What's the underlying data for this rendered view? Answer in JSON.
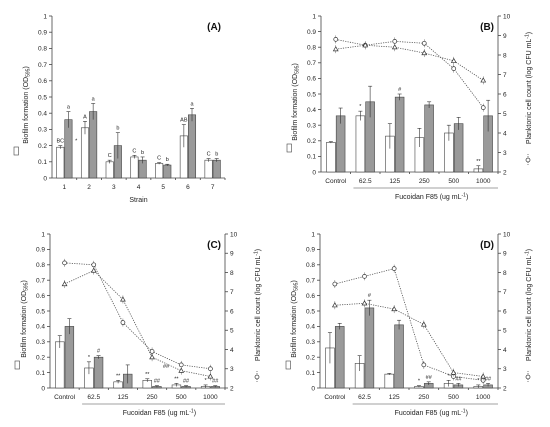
{
  "chart_data": [
    {
      "type": "bar",
      "panel": "(A)",
      "xlabel": "Strain",
      "ylabel": "Biofilm formation (OD595)",
      "ylim": [
        0,
        1.0
      ],
      "yticks": [
        "0",
        "0.1",
        "0.2",
        "0.3",
        "0.4",
        "0.5",
        "0.6",
        "0.7",
        "0.8",
        "0.9",
        "1"
      ],
      "categories": [
        "1",
        "2",
        "3",
        "4",
        "5",
        "6",
        "7"
      ],
      "series": [
        {
          "style": "white",
          "values": [
            0.19,
            0.31,
            0.1,
            0.13,
            0.09,
            0.26,
            0.11
          ],
          "errors": [
            0.01,
            0.04,
            0.01,
            0.01,
            0.005,
            0.07,
            0.01
          ],
          "annotations": [
            "BC",
            "A",
            "C",
            "C",
            "C",
            "AB",
            "C"
          ]
        },
        {
          "style": "gray",
          "values": [
            0.36,
            0.41,
            0.2,
            0.11,
            0.08,
            0.39,
            0.11
          ],
          "errors": [
            0.05,
            0.05,
            0.08,
            0.02,
            0.005,
            0.04,
            0.01
          ],
          "annotations": [
            "a",
            "a",
            "b",
            "b",
            "b",
            "a",
            "b"
          ]
        }
      ],
      "extra_annotations": [
        "*"
      ]
    },
    {
      "type": "bar+line",
      "panel": "(B)",
      "xlabel": "Fucoidan F85 (ug mL-1)",
      "ylabel": "Biofilm formation (OD595)",
      "y2label": "Planktonic cell count (log CFU mL-1)",
      "ylim": [
        0,
        1.0
      ],
      "y2lim": [
        2,
        10
      ],
      "yticks": [
        "0",
        "0.1",
        "0.2",
        "0.3",
        "0.4",
        "0.5",
        "0.6",
        "0.7",
        "0.8",
        "0.9",
        "1"
      ],
      "y2ticks": [
        "2",
        "3",
        "4",
        "5",
        "6",
        "7",
        "8",
        "9",
        "10"
      ],
      "categories": [
        "Control",
        "62.5",
        "125",
        "250",
        "500",
        "1000"
      ],
      "series": [
        {
          "style": "white",
          "values": [
            0.19,
            0.36,
            0.23,
            0.22,
            0.25,
            0.02
          ],
          "errors": [
            0.005,
            0.03,
            0.08,
            0.06,
            0.05,
            0.02
          ],
          "annotations": [
            "",
            "*",
            "",
            "",
            "",
            "**"
          ]
        },
        {
          "style": "gray",
          "values": [
            0.36,
            0.45,
            0.48,
            0.43,
            0.31,
            0.36
          ],
          "errors": [
            0.05,
            0.1,
            0.02,
            0.02,
            0.04,
            0.1
          ],
          "annotations": [
            "",
            "",
            "#",
            "",
            "",
            ""
          ]
        }
      ],
      "lines": [
        {
          "marker": "circle",
          "values": [
            8.8,
            8.5,
            8.7,
            8.6,
            7.3,
            5.3
          ]
        },
        {
          "marker": "triangle",
          "values": [
            8.3,
            8.5,
            8.4,
            8.1,
            7.7,
            6.7
          ]
        }
      ]
    },
    {
      "type": "bar+line",
      "panel": "(C)",
      "xlabel": "Fucoidan F85 (ug mL-1)",
      "ylabel": "Biofilm formation (OD595)",
      "y2label": "Planktonic cell count (log CFU mL-1)",
      "ylim": [
        0,
        1.0
      ],
      "y2lim": [
        2,
        10
      ],
      "yticks": [
        "0",
        "0.1",
        "0.2",
        "0.3",
        "0.4",
        "0.5",
        "0.6",
        "0.7",
        "0.8",
        "0.9",
        "1"
      ],
      "y2ticks": [
        "2",
        "3",
        "4",
        "5",
        "6",
        "7",
        "8",
        "9",
        "10"
      ],
      "categories": [
        "Control",
        "62.5",
        "125",
        "250",
        "500",
        "1000"
      ],
      "series": [
        {
          "style": "white",
          "values": [
            0.3,
            0.13,
            0.04,
            0.05,
            0.02,
            0.01
          ],
          "errors": [
            0.04,
            0.04,
            0.01,
            0.01,
            0.01,
            0.01
          ],
          "annotations": [
            "",
            "*",
            "**",
            "**",
            "**",
            "*"
          ]
        },
        {
          "style": "gray",
          "values": [
            0.4,
            0.2,
            0.09,
            0.01,
            0.01,
            0.01
          ],
          "errors": [
            0.05,
            0.01,
            0.06,
            0.005,
            0.005,
            0.005
          ],
          "annotations": [
            "",
            "#",
            "",
            "##",
            "##",
            "##"
          ]
        }
      ],
      "extra_annotations": [
        "##"
      ],
      "lines": [
        {
          "marker": "circle",
          "values": [
            8.5,
            8.4,
            5.4,
            3.9,
            3.2,
            3.0
          ]
        },
        {
          "marker": "triangle",
          "values": [
            7.4,
            8.1,
            6.6,
            3.6,
            2.9,
            2.6
          ]
        }
      ]
    },
    {
      "type": "bar+line",
      "panel": "(D)",
      "xlabel": "Fucoidan F85 (ug mL-1)",
      "ylabel": "Biofilm formation (OD595)",
      "y2label": "Planktonic cell count (log CFU mL-1)",
      "ylim": [
        0,
        1.0
      ],
      "y2lim": [
        2,
        10
      ],
      "yticks": [
        "0",
        "0.1",
        "0.2",
        "0.3",
        "0.4",
        "0.5",
        "0.6",
        "0.7",
        "0.8",
        "0.9",
        "1"
      ],
      "y2ticks": [
        "2",
        "3",
        "4",
        "5",
        "6",
        "7",
        "8",
        "9",
        "10"
      ],
      "categories": [
        "Control",
        "62.5",
        "125",
        "250",
        "500",
        "1000"
      ],
      "series": [
        {
          "style": "white",
          "values": [
            0.26,
            0.16,
            0.09,
            0.01,
            0.03,
            0.01
          ],
          "errors": [
            0.1,
            0.05,
            0.005,
            0.005,
            0.02,
            0.01
          ],
          "annotations": [
            "",
            "",
            "",
            "*",
            "*",
            "*"
          ]
        },
        {
          "style": "gray",
          "values": [
            0.4,
            0.52,
            0.41,
            0.03,
            0.02,
            0.02
          ],
          "errors": [
            0.02,
            0.05,
            0.03,
            0.01,
            0.01,
            0.01
          ],
          "annotations": [
            "",
            "#",
            "",
            "##",
            "##",
            "##"
          ]
        }
      ],
      "lines": [
        {
          "marker": "circle",
          "values": [
            7.4,
            7.8,
            8.2,
            3.2,
            2.6,
            2.4
          ]
        },
        {
          "marker": "triangle",
          "values": [
            6.3,
            6.4,
            6.1,
            5.3,
            2.8,
            2.6
          ]
        }
      ]
    }
  ]
}
